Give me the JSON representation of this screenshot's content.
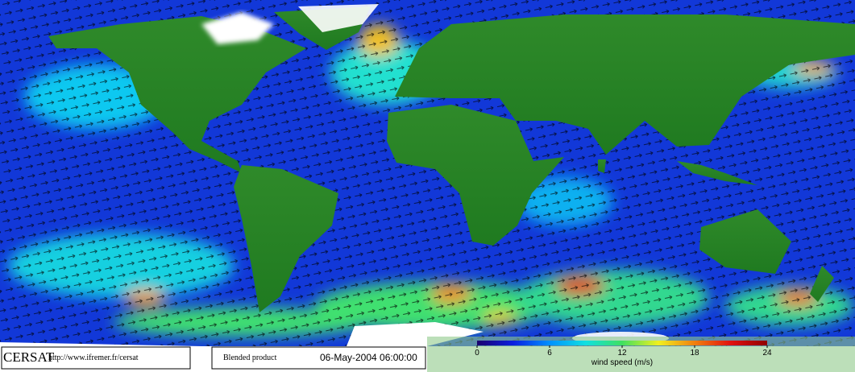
{
  "footer": {
    "logo": "CERSAT",
    "url": "http://www.ifremer.fr/cersat",
    "product": "Blended product",
    "date": "06-May-2004 06:00:00"
  },
  "colorbar": {
    "label": "wind speed (m/s)",
    "lim": [
      0,
      24
    ],
    "ticks": [
      0,
      6,
      12,
      18,
      24
    ],
    "colors": [
      "#1a006e",
      "#0a1ee0",
      "#0090ff",
      "#10e0e0",
      "#40e060",
      "#f0f020",
      "#f08010",
      "#e01010",
      "#900000"
    ]
  }
}
